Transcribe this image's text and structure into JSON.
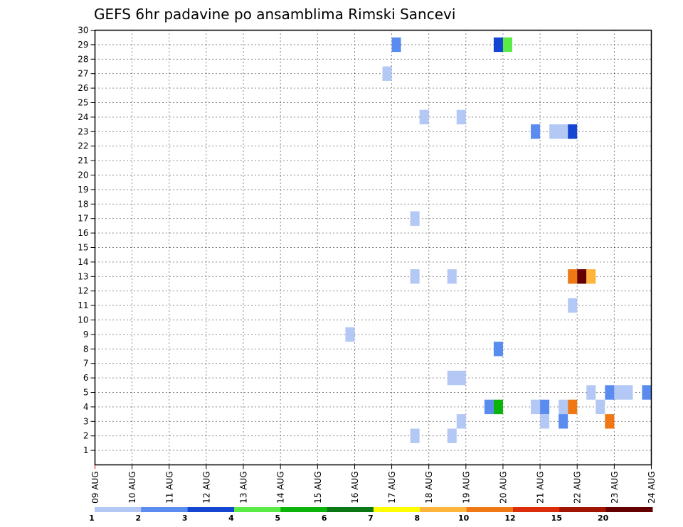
{
  "chart_data": {
    "type": "heatmap",
    "title": "GEFS 6hr padavine po ansamblima Rimski Sancevi",
    "xlabel": "",
    "ylabel": "",
    "x_tick_labels": [
      "09 AUG",
      "10 AUG",
      "11 AUG",
      "12 AUG",
      "13 AUG",
      "14 AUG",
      "15 AUG",
      "16 AUG",
      "17 AUG",
      "18 AUG",
      "19 AUG",
      "20 AUG",
      "21 AUG",
      "22 AUG",
      "23 AUG",
      "24 AUG"
    ],
    "y_tick_labels": [
      "1",
      "2",
      "3",
      "4",
      "5",
      "6",
      "7",
      "8",
      "9",
      "10",
      "11",
      "12",
      "13",
      "14",
      "15",
      "16",
      "17",
      "18",
      "19",
      "20",
      "21",
      "22",
      "23",
      "24",
      "25",
      "26",
      "27",
      "28",
      "29",
      "30"
    ],
    "xlim_days": [
      0,
      15
    ],
    "ylim": [
      0,
      30
    ],
    "grid": true,
    "legend_placement": "bottom",
    "legend": {
      "thresholds": [
        1,
        2,
        3,
        4,
        5,
        6,
        7,
        8,
        10,
        12,
        15,
        20
      ],
      "labels": [
        "1",
        "2",
        "3",
        "4",
        "5",
        "6",
        "7",
        "8",
        "10",
        "12",
        "15",
        "20"
      ],
      "colors": [
        "#b4c8f5",
        "#5a8cf0",
        "#1446d2",
        "#5aeb46",
        "#0ab40a",
        "#0a7814",
        "#ffff00",
        "#ffb43c",
        "#f07814",
        "#dc2d0a",
        "#a01400",
        "#640000"
      ]
    },
    "cells": [
      {
        "member": 29,
        "start": "17 AUG 00",
        "hours": 6,
        "category": 2
      },
      {
        "member": 29,
        "start": "19 AUG 18",
        "hours": 6,
        "category": 3
      },
      {
        "member": 29,
        "start": "20 AUG 00",
        "hours": 6,
        "category": 4
      },
      {
        "member": 27,
        "start": "16 AUG 18",
        "hours": 6,
        "category": 1
      },
      {
        "member": 24,
        "start": "17 AUG 18",
        "hours": 6,
        "category": 1
      },
      {
        "member": 24,
        "start": "18 AUG 18",
        "hours": 6,
        "category": 1
      },
      {
        "member": 23,
        "start": "20 AUG 18",
        "hours": 6,
        "category": 2
      },
      {
        "member": 23,
        "start": "21 AUG 06",
        "hours": 12,
        "category": 1
      },
      {
        "member": 23,
        "start": "21 AUG 18",
        "hours": 6,
        "category": 3
      },
      {
        "member": 17,
        "start": "17 AUG 12",
        "hours": 6,
        "category": 1
      },
      {
        "member": 13,
        "start": "17 AUG 12",
        "hours": 6,
        "category": 1
      },
      {
        "member": 13,
        "start": "18 AUG 12",
        "hours": 6,
        "category": 1
      },
      {
        "member": 13,
        "start": "21 AUG 18",
        "hours": 6,
        "category": 9
      },
      {
        "member": 13,
        "start": "22 AUG 00",
        "hours": 6,
        "category": 12
      },
      {
        "member": 13,
        "start": "22 AUG 06",
        "hours": 6,
        "category": 8
      },
      {
        "member": 11,
        "start": "21 AUG 18",
        "hours": 6,
        "category": 1
      },
      {
        "member": 9,
        "start": "15 AUG 18",
        "hours": 6,
        "category": 1
      },
      {
        "member": 8,
        "start": "19 AUG 18",
        "hours": 6,
        "category": 2
      },
      {
        "member": 6,
        "start": "18 AUG 12",
        "hours": 12,
        "category": 1
      },
      {
        "member": 5,
        "start": "22 AUG 06",
        "hours": 6,
        "category": 1
      },
      {
        "member": 5,
        "start": "22 AUG 18",
        "hours": 6,
        "category": 2
      },
      {
        "member": 5,
        "start": "23 AUG 00",
        "hours": 12,
        "category": 1
      },
      {
        "member": 5,
        "start": "23 AUG 18",
        "hours": 6,
        "category": 2
      },
      {
        "member": 4,
        "start": "19 AUG 12",
        "hours": 6,
        "category": 2
      },
      {
        "member": 4,
        "start": "19 AUG 18",
        "hours": 6,
        "category": 5
      },
      {
        "member": 4,
        "start": "20 AUG 18",
        "hours": 6,
        "category": 1
      },
      {
        "member": 4,
        "start": "21 AUG 00",
        "hours": 6,
        "category": 2
      },
      {
        "member": 4,
        "start": "21 AUG 12",
        "hours": 6,
        "category": 1
      },
      {
        "member": 4,
        "start": "21 AUG 18",
        "hours": 6,
        "category": 9
      },
      {
        "member": 4,
        "start": "22 AUG 12",
        "hours": 6,
        "category": 1
      },
      {
        "member": 3,
        "start": "18 AUG 18",
        "hours": 6,
        "category": 1
      },
      {
        "member": 3,
        "start": "21 AUG 00",
        "hours": 6,
        "category": 1
      },
      {
        "member": 3,
        "start": "21 AUG 12",
        "hours": 6,
        "category": 2
      },
      {
        "member": 3,
        "start": "22 AUG 18",
        "hours": 6,
        "category": 9
      },
      {
        "member": 2,
        "start": "17 AUG 12",
        "hours": 6,
        "category": 1
      },
      {
        "member": 2,
        "start": "18 AUG 12",
        "hours": 6,
        "category": 1
      }
    ]
  }
}
